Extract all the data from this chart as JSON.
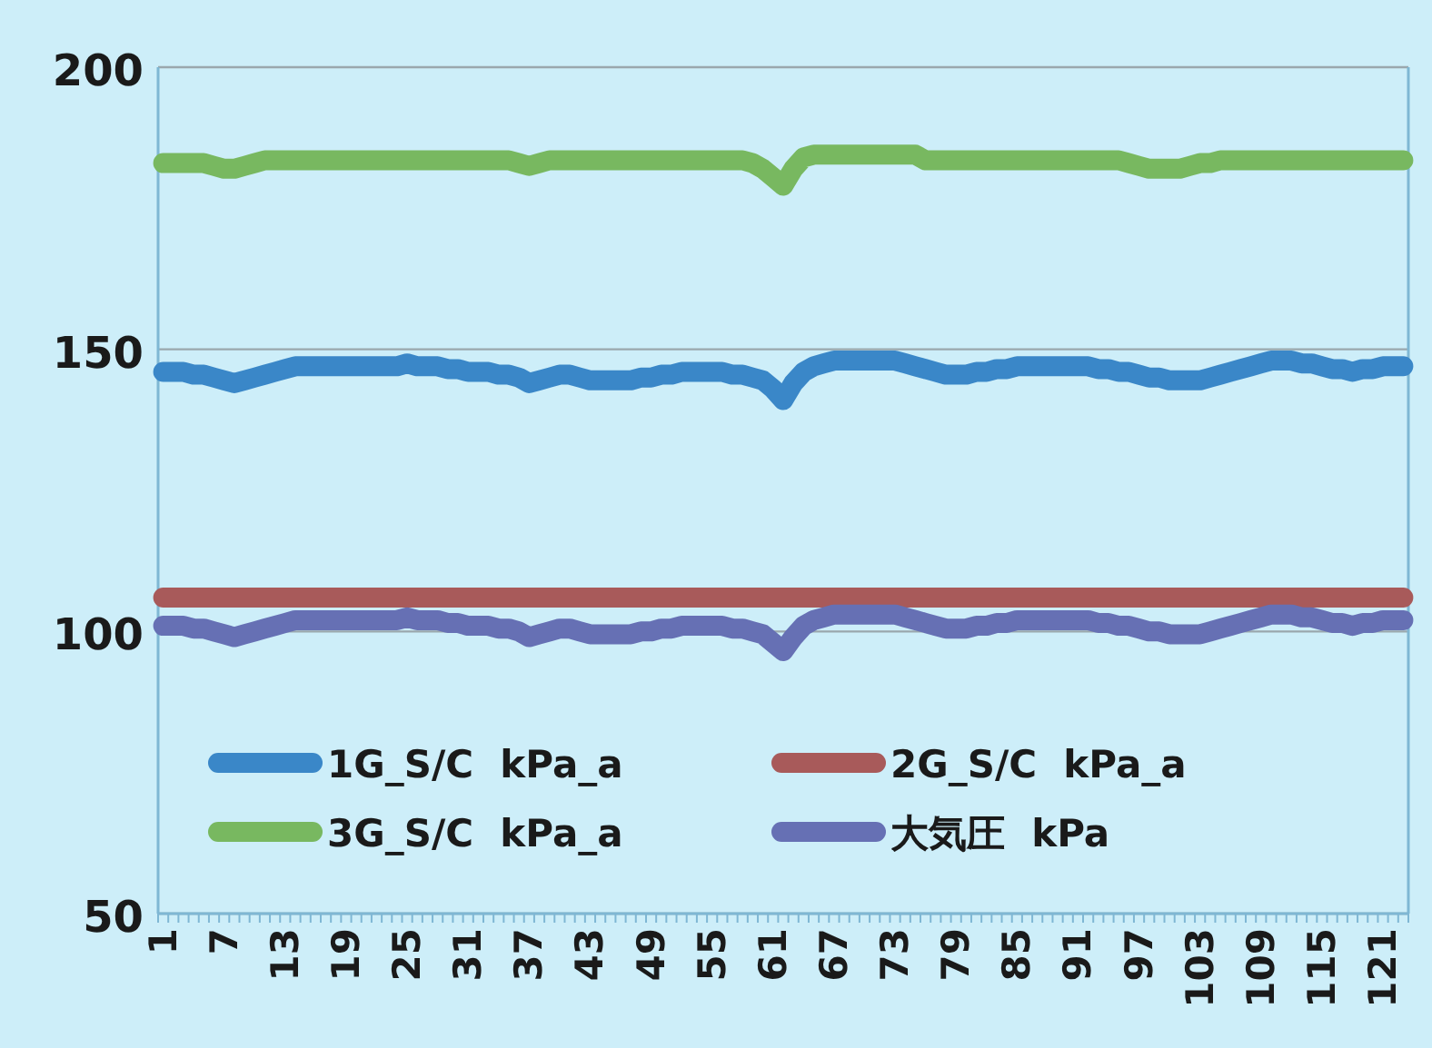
{
  "chart_data": {
    "type": "line",
    "categories": [
      "1",
      null,
      null,
      null,
      null,
      null,
      "7",
      null,
      null,
      null,
      null,
      null,
      "13",
      null,
      null,
      null,
      null,
      null,
      "19",
      null,
      null,
      null,
      null,
      null,
      "25",
      null,
      null,
      null,
      null,
      null,
      "31",
      null,
      null,
      null,
      null,
      null,
      "37",
      null,
      null,
      null,
      null,
      null,
      "43",
      null,
      null,
      null,
      null,
      null,
      "49",
      null,
      null,
      null,
      null,
      null,
      "55",
      null,
      null,
      null,
      null,
      null,
      "61",
      null,
      null,
      null,
      null,
      null,
      "67",
      null,
      null,
      null,
      null,
      null,
      "73",
      null,
      null,
      null,
      null,
      null,
      "79",
      null,
      null,
      null,
      null,
      null,
      "85",
      null,
      null,
      null,
      null,
      null,
      "91",
      null,
      null,
      null,
      null,
      null,
      "97",
      null,
      null,
      null,
      null,
      null,
      "103",
      null,
      null,
      null,
      null,
      null,
      "109",
      null,
      null,
      null,
      null,
      null,
      "115",
      null,
      null,
      null,
      null,
      null,
      "121",
      null,
      null
    ],
    "series": [
      {
        "name": "1G_S/C  kPa_a",
        "color": "#3a87c8",
        "values": [
          146,
          146,
          146,
          145.5,
          145.5,
          145,
          144.5,
          144,
          144.5,
          145,
          145.5,
          146,
          146.5,
          147,
          147,
          147,
          147,
          147,
          147,
          147,
          147,
          147,
          147,
          147,
          147.5,
          147,
          147,
          147,
          146.5,
          146.5,
          146,
          146,
          146,
          145.5,
          145.5,
          145,
          144,
          144.5,
          145,
          145.5,
          145.5,
          145,
          144.5,
          144.5,
          144.5,
          144.5,
          144.5,
          145,
          145,
          145.5,
          145.5,
          146,
          146,
          146,
          146,
          146,
          145.5,
          145.5,
          145,
          144.5,
          143,
          141,
          144,
          146,
          147,
          147.5,
          148,
          148,
          148,
          148,
          148,
          148,
          148,
          147.5,
          147,
          146.5,
          146,
          145.5,
          145.5,
          145.5,
          146,
          146,
          146.5,
          146.5,
          147,
          147,
          147,
          147,
          147,
          147,
          147,
          147,
          146.5,
          146.5,
          146,
          146,
          145.5,
          145,
          145,
          144.5,
          144.5,
          144.5,
          144.5,
          145,
          145.5,
          146,
          146.5,
          147,
          147.5,
          148,
          148,
          148,
          147.5,
          147.5,
          147,
          146.5,
          146.5,
          146,
          146.5,
          146.5,
          147,
          147,
          147
        ]
      },
      {
        "name": "2G_S/C  kPa_a",
        "color": "#a85a5a",
        "values": [
          106,
          106,
          106,
          106,
          106,
          106,
          106,
          106,
          106,
          106,
          106,
          106,
          106,
          106,
          106,
          106,
          106,
          106,
          106,
          106,
          106,
          106,
          106,
          106,
          106,
          106,
          106,
          106,
          106,
          106,
          106,
          106,
          106,
          106,
          106,
          106,
          106,
          106,
          106,
          106,
          106,
          106,
          106,
          106,
          106,
          106,
          106,
          106,
          106,
          106,
          106,
          106,
          106,
          106,
          106,
          106,
          106,
          106,
          106,
          106,
          106,
          106,
          106,
          106,
          106,
          106,
          106,
          106,
          106,
          106,
          106,
          106,
          106,
          106,
          106,
          106,
          106,
          106,
          106,
          106,
          106,
          106,
          106,
          106,
          106,
          106,
          106,
          106,
          106,
          106,
          106,
          106,
          106,
          106,
          106,
          106,
          106,
          106,
          106,
          106,
          106,
          106,
          106,
          106,
          106,
          106,
          106,
          106,
          106,
          106,
          106,
          106,
          106,
          106,
          106,
          106,
          106,
          106,
          106,
          106,
          106,
          106,
          106
        ]
      },
      {
        "name": "3G_S/C  kPa_a",
        "color": "#78b860",
        "values": [
          183,
          183,
          183,
          183,
          183,
          182.5,
          182,
          182,
          182.5,
          183,
          183.5,
          183.5,
          183.5,
          183.5,
          183.5,
          183.5,
          183.5,
          183.5,
          183.5,
          183.5,
          183.5,
          183.5,
          183.5,
          183.5,
          183.5,
          183.5,
          183.5,
          183.5,
          183.5,
          183.5,
          183.5,
          183.5,
          183.5,
          183.5,
          183.5,
          183,
          182.5,
          183,
          183.5,
          183.5,
          183.5,
          183.5,
          183.5,
          183.5,
          183.5,
          183.5,
          183.5,
          183.5,
          183.5,
          183.5,
          183.5,
          183.5,
          183.5,
          183.5,
          183.5,
          183.5,
          183.5,
          183.5,
          183,
          182,
          180.5,
          179,
          182,
          184,
          184.5,
          184.5,
          184.5,
          184.5,
          184.5,
          184.5,
          184.5,
          184.5,
          184.5,
          184.5,
          184.5,
          183.5,
          183.5,
          183.5,
          183.5,
          183.5,
          183.5,
          183.5,
          183.5,
          183.5,
          183.5,
          183.5,
          183.5,
          183.5,
          183.5,
          183.5,
          183.5,
          183.5,
          183.5,
          183.5,
          183.5,
          183,
          182.5,
          182,
          182,
          182,
          182,
          182.5,
          183,
          183,
          183.5,
          183.5,
          183.5,
          183.5,
          183.5,
          183.5,
          183.5,
          183.5,
          183.5,
          183.5,
          183.5,
          183.5,
          183.5,
          183.5,
          183.5,
          183.5,
          183.5,
          183.5,
          183.5
        ]
      },
      {
        "name": "大気圧  kPa",
        "color": "#6670b4",
        "values": [
          101,
          101,
          101,
          100.5,
          100.5,
          100,
          99.5,
          99,
          99.5,
          100,
          100.5,
          101,
          101.5,
          102,
          102,
          102,
          102,
          102,
          102,
          102,
          102,
          102,
          102,
          102,
          102.5,
          102,
          102,
          102,
          101.5,
          101.5,
          101,
          101,
          101,
          100.5,
          100.5,
          100,
          99,
          99.5,
          100,
          100.5,
          100.5,
          100,
          99.5,
          99.5,
          99.5,
          99.5,
          99.5,
          100,
          100,
          100.5,
          100.5,
          101,
          101,
          101,
          101,
          101,
          100.5,
          100.5,
          100,
          99.5,
          98,
          96.5,
          99,
          101,
          102,
          102.5,
          103,
          103,
          103,
          103,
          103,
          103,
          103,
          102.5,
          102,
          101.5,
          101,
          100.5,
          100.5,
          100.5,
          101,
          101,
          101.5,
          101.5,
          102,
          102,
          102,
          102,
          102,
          102,
          102,
          102,
          101.5,
          101.5,
          101,
          101,
          100.5,
          100,
          100,
          99.5,
          99.5,
          99.5,
          99.5,
          100,
          100.5,
          101,
          101.5,
          102,
          102.5,
          103,
          103,
          103,
          102.5,
          102.5,
          102,
          101.5,
          101.5,
          101,
          101.5,
          101.5,
          102,
          102,
          102
        ]
      }
    ],
    "ylim": [
      50,
      200
    ],
    "yticks": [
      50,
      100,
      150,
      200
    ],
    "grid": "y",
    "legend": "bottom"
  }
}
